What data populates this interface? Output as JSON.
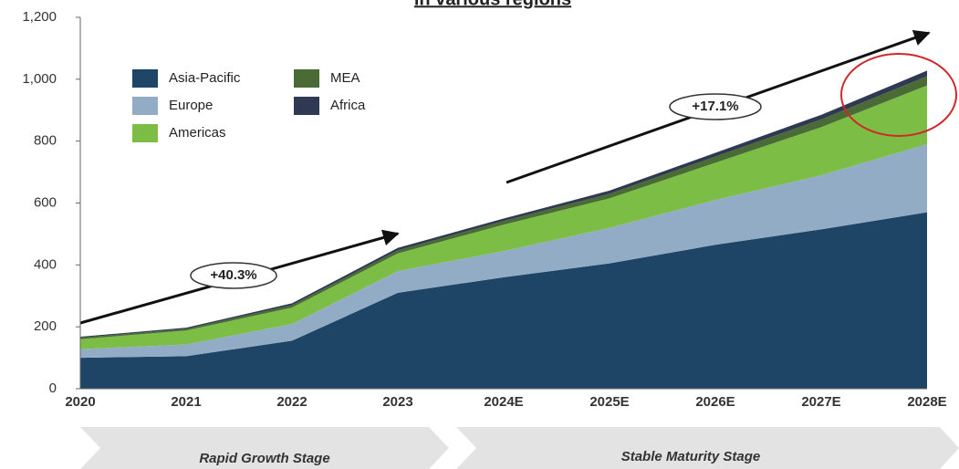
{
  "chart_data": {
    "type": "stacked-area",
    "title": "in various regions",
    "categories": [
      "2020",
      "2021",
      "2022",
      "2023",
      "2024E",
      "2025E",
      "2026E",
      "2027E",
      "2028E"
    ],
    "series": [
      {
        "name": "Asia-Pacific",
        "color": "#1f4566",
        "values": [
          100,
          105,
          155,
          310,
          360,
          405,
          465,
          515,
          570
        ]
      },
      {
        "name": "Europe",
        "color": "#93acc6",
        "values": [
          28,
          38,
          54,
          70,
          85,
          115,
          145,
          175,
          220
        ]
      },
      {
        "name": "Americas",
        "color": "#7cbe45",
        "values": [
          32,
          45,
          53,
          57,
          85,
          95,
          120,
          155,
          190
        ]
      },
      {
        "name": "MEA",
        "color": "#4a6b35",
        "values": [
          5,
          5,
          8,
          10,
          12,
          15,
          20,
          25,
          30
        ]
      },
      {
        "name": "Africa",
        "color": "#2f3a52",
        "values": [
          3,
          4,
          6,
          8,
          8,
          10,
          12,
          15,
          18
        ]
      }
    ],
    "ylim": [
      0,
      1200
    ],
    "yticks": [
      0,
      200,
      400,
      600,
      800,
      {
        "value": 1000,
        "label": "1,000"
      },
      {
        "value": 1200,
        "label": "1,200"
      }
    ],
    "annotations": [
      "+40.3%",
      "+17.1%"
    ],
    "stages": [
      "Rapid Growth Stage",
      "Stable Maturity Stage"
    ]
  }
}
